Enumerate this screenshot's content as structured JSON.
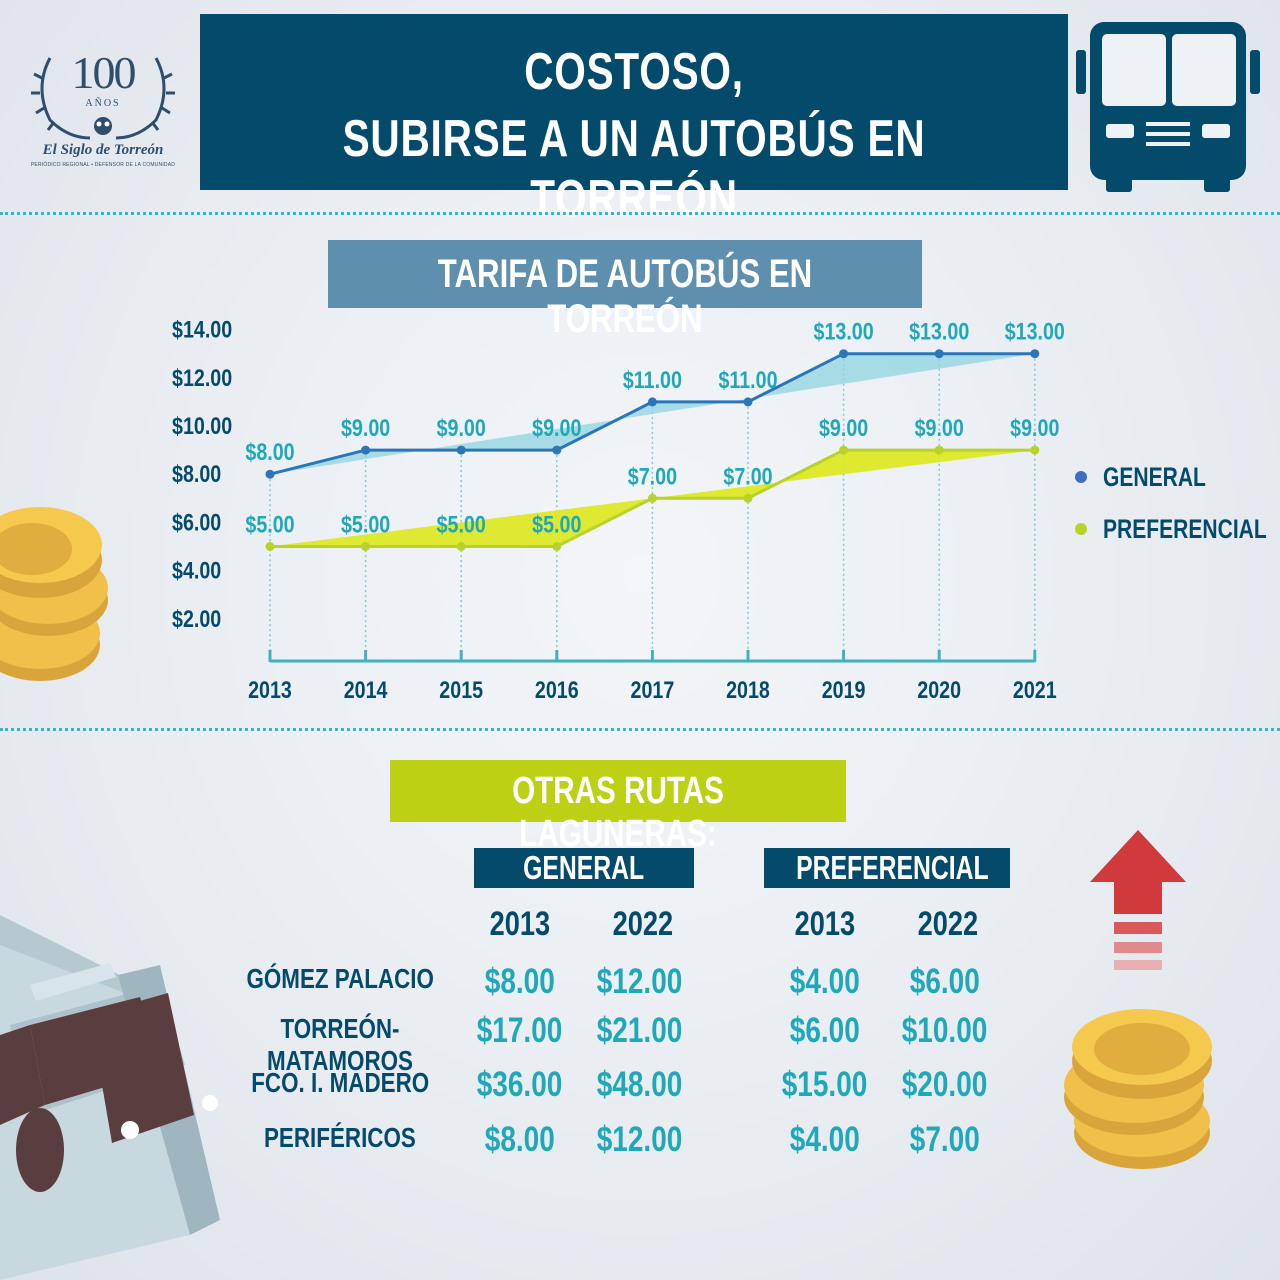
{
  "logo": {
    "number": "100",
    "anos": "AÑOS",
    "name": "El Siglo de Torreón",
    "tagline": "PERIÓDICO REGIONAL • DEFENSOR DE LA COMUNIDAD"
  },
  "header": {
    "title_line1": "COSTOSO,",
    "title_line2": "SUBIRSE A UN AUTOBÚS EN TORREÓN"
  },
  "chart_title": "TARIFA DE AUTOBÚS EN TORREÓN",
  "chart_data": {
    "type": "line",
    "title": "TARIFA DE AUTOBÚS EN TORREÓN",
    "x": [
      "2013",
      "2014",
      "2015",
      "2016",
      "2017",
      "2018",
      "2019",
      "2020",
      "2021"
    ],
    "yticks": [
      "$2.00",
      "$4.00",
      "$6.00",
      "$8.00",
      "$10.00",
      "$12.00",
      "$14.00"
    ],
    "ylim": [
      0,
      14
    ],
    "series": [
      {
        "name": "GENERAL",
        "color": "#2b76b9",
        "fill": "#8fd4e0",
        "values": [
          8,
          9,
          9,
          9,
          11,
          11,
          13,
          13,
          13
        ],
        "labels": [
          "$8.00",
          "$9.00",
          "$9.00",
          "$9.00",
          "$11.00",
          "$11.00",
          "$13.00",
          "$13.00",
          "$13.00"
        ]
      },
      {
        "name": "PREFERENCIAL",
        "color": "#b9d22a",
        "fill": "#dde81c",
        "values": [
          5,
          5,
          5,
          5,
          7,
          7,
          9,
          9,
          9
        ],
        "labels": [
          "$5.00",
          "$5.00",
          "$5.00",
          "$5.00",
          "$7.00",
          "$7.00",
          "$9.00",
          "$9.00",
          "$9.00"
        ]
      }
    ],
    "legend": "right",
    "label_color": "#1fa8b8"
  },
  "other_title": "OTRAS RUTAS LAGUNERAS:",
  "table": {
    "group_general": "GENERAL",
    "group_pref": "PREFERENCIAL",
    "years": [
      "2013",
      "2022",
      "2013",
      "2022"
    ],
    "rows": [
      {
        "route": "GÓMEZ PALACIO",
        "values": [
          "$8.00",
          "$12.00",
          "$4.00",
          "$6.00"
        ]
      },
      {
        "route": "TORREÓN-MATAMOROS",
        "values": [
          "$17.00",
          "$21.00",
          "$6.00",
          "$10.00"
        ]
      },
      {
        "route": "FCO. I. MADERO",
        "values": [
          "$36.00",
          "$48.00",
          "$15.00",
          "$20.00"
        ]
      },
      {
        "route": "PERIFÉRICOS",
        "values": [
          "$8.00",
          "$12.00",
          "$4.00",
          "$7.00"
        ]
      }
    ]
  }
}
